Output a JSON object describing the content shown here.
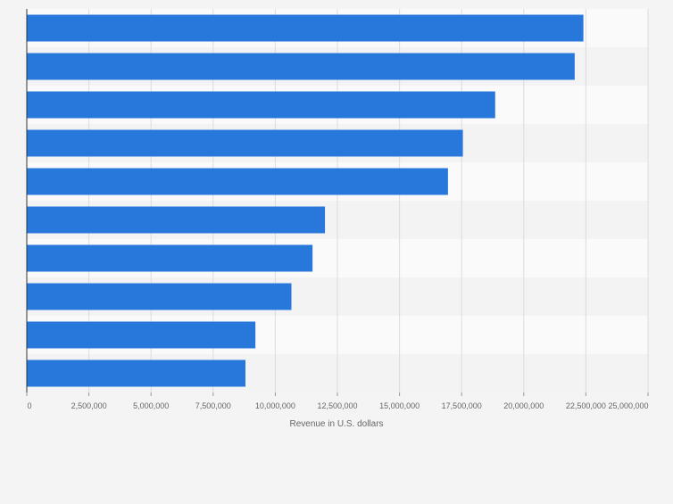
{
  "chart_data": {
    "type": "bar",
    "orientation": "horizontal",
    "title": "",
    "categories": [
      "",
      "",
      "",
      "",
      "",
      "",
      "",
      "",
      "",
      ""
    ],
    "values": [
      22400000,
      22050000,
      18850000,
      17550000,
      16950000,
      12000000,
      11500000,
      10650000,
      9200000,
      8800000
    ],
    "xlabel": "Revenue in U.S. dollars",
    "ylabel": "",
    "xlim": [
      0,
      25000000
    ],
    "xticks": [
      0,
      2500000,
      5000000,
      7500000,
      10000000,
      12500000,
      15000000,
      17500000,
      20000000,
      22500000,
      25000000
    ],
    "xtick_labels": [
      "0",
      "2,500,000",
      "5,000,000",
      "7,500,000",
      "10,000,000",
      "12,500,000",
      "15,000,000",
      "17,500,000",
      "20,000,000",
      "22,500,000",
      "25,000,000"
    ],
    "grid": true,
    "bar_color": "#2878dc",
    "band_colors": [
      "#fafafa",
      "#f3f3f3"
    ],
    "gridline_color": "#dcdcdc",
    "axis_color": "#333333",
    "label_color": "#666666"
  }
}
